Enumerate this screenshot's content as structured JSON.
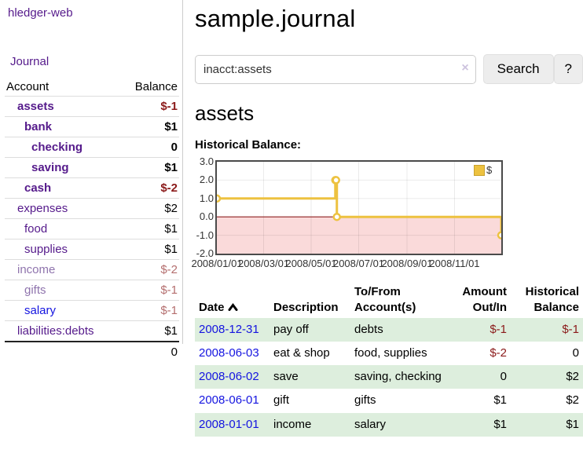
{
  "sidebar": {
    "brand": "hledger-web",
    "nav": {
      "journal": "Journal"
    },
    "accounts_table": {
      "headers": {
        "account": "Account",
        "balance": "Balance"
      },
      "rows": [
        {
          "name": "assets",
          "indent": 1,
          "name_class": "purple-bold",
          "balance": "$-1",
          "balance_class": "neg-bold"
        },
        {
          "name": "bank",
          "indent": 2,
          "name_class": "purple-bold",
          "balance": "$1",
          "balance_class": "pos-bold"
        },
        {
          "name": "checking",
          "indent": 3,
          "name_class": "purple-bold",
          "balance": "0",
          "balance_class": "pos-bold"
        },
        {
          "name": "saving",
          "indent": 3,
          "name_class": "purple-bold",
          "balance": "$1",
          "balance_class": "pos-bold"
        },
        {
          "name": "cash",
          "indent": 2,
          "name_class": "purple-bold",
          "balance": "$-2",
          "balance_class": "neg-bold"
        },
        {
          "name": "expenses",
          "indent": 1,
          "name_class": "purple",
          "balance": "$2",
          "balance_class": "pos"
        },
        {
          "name": "food",
          "indent": 2,
          "name_class": "purple",
          "balance": "$1",
          "balance_class": "pos"
        },
        {
          "name": "supplies",
          "indent": 2,
          "name_class": "purple",
          "balance": "$1",
          "balance_class": "pos"
        },
        {
          "name": "income",
          "indent": 1,
          "name_class": "purple-dim",
          "balance": "$-2",
          "balance_class": "neg-dim"
        },
        {
          "name": "gifts",
          "indent": 2,
          "name_class": "purple-dim",
          "balance": "$-1",
          "balance_class": "neg-dim"
        },
        {
          "name": "salary",
          "indent": 2,
          "name_class": "blue",
          "balance": "$-1",
          "balance_class": "neg-dim"
        },
        {
          "name": "liabilities:debts",
          "indent": 1,
          "name_class": "purple",
          "balance": "$1",
          "balance_class": "pos"
        }
      ],
      "total": "0"
    }
  },
  "main": {
    "title": "sample.journal",
    "search": {
      "query": "inacct:assets",
      "clear_icon": "×",
      "button": "Search",
      "help_button": "?"
    },
    "account_heading": "assets",
    "chart_label": "Historical Balance:",
    "register_table": {
      "headers": [
        "Date",
        "Description",
        "To/From Account(s)",
        "Amount Out/In",
        "Historical Balance"
      ],
      "rows": [
        {
          "date": "2008-12-31",
          "description": "pay off",
          "accounts": "debts",
          "amount": "$-1",
          "amount_negative": true,
          "balance": "$-1",
          "balance_negative": true,
          "highlighted": true
        },
        {
          "date": "2008-06-03",
          "description": "eat & shop",
          "accounts": "food, supplies",
          "amount": "$-2",
          "amount_negative": true,
          "balance": "0",
          "balance_negative": false,
          "highlighted": false
        },
        {
          "date": "2008-06-02",
          "description": "save",
          "accounts": "saving, checking",
          "amount": "0",
          "amount_negative": false,
          "balance": "$2",
          "balance_negative": false,
          "highlighted": true
        },
        {
          "date": "2008-06-01",
          "description": "gift",
          "accounts": "gifts",
          "amount": "$1",
          "amount_negative": false,
          "balance": "$2",
          "balance_negative": false,
          "highlighted": false
        },
        {
          "date": "2008-01-01",
          "description": "income",
          "accounts": "salary",
          "amount": "$1",
          "amount_negative": false,
          "balance": "$1",
          "balance_negative": false,
          "highlighted": true
        }
      ]
    }
  },
  "chart_data": {
    "type": "line",
    "step": true,
    "title": "Historical Balance",
    "x": [
      "2008-01-01",
      "2008-06-01",
      "2008-06-02",
      "2008-06-03",
      "2008-12-31"
    ],
    "series": [
      {
        "name": "$",
        "color": "#edc240",
        "values": [
          1,
          2,
          2,
          0,
          -1
        ]
      }
    ],
    "xlim": [
      "2008-01-01",
      "2008-12-31"
    ],
    "ylim": [
      -2,
      3
    ],
    "x_tick_labels": [
      "2008/01/01",
      "2008/03/01",
      "2008/05/01",
      "2008/07/01",
      "2008/09/01",
      "2008/11/01"
    ],
    "y_tick_labels": [
      "3.0",
      "2.0",
      "1.0",
      "0.0",
      "-1.0",
      "-2.0"
    ],
    "grid": true,
    "legend_position": "top-right",
    "zero_line_color": "#8f1f1f",
    "negative_region_color": "#fadada"
  },
  "colors": {
    "link_purple": "#551a8b",
    "link_purple_dim": "#8f74ad",
    "link_blue": "#1414e0",
    "negative_red": "#8b1a1a",
    "negative_red_dim": "#b46e6e",
    "row_highlight_green": "#ddeedd",
    "chart_series_gold": "#edc240",
    "chart_negative_pink": "#fadada",
    "chart_zero_line": "#8f1f1f"
  }
}
